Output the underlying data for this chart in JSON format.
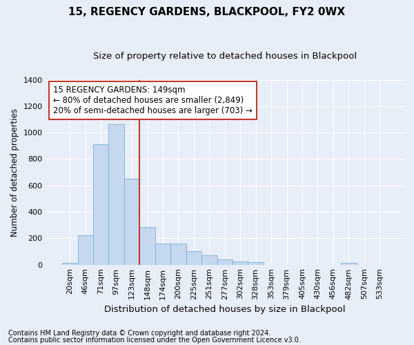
{
  "title": "15, REGENCY GARDENS, BLACKPOOL, FY2 0WX",
  "subtitle": "Size of property relative to detached houses in Blackpool",
  "xlabel": "Distribution of detached houses by size in Blackpool",
  "ylabel": "Number of detached properties",
  "categories": [
    "20sqm",
    "46sqm",
    "71sqm",
    "97sqm",
    "123sqm",
    "148sqm",
    "174sqm",
    "200sqm",
    "225sqm",
    "251sqm",
    "277sqm",
    "302sqm",
    "328sqm",
    "353sqm",
    "379sqm",
    "405sqm",
    "430sqm",
    "456sqm",
    "482sqm",
    "507sqm",
    "533sqm"
  ],
  "values": [
    15,
    225,
    910,
    1065,
    650,
    285,
    160,
    160,
    105,
    70,
    40,
    25,
    20,
    0,
    0,
    0,
    0,
    0,
    15,
    0,
    0
  ],
  "bar_color": "#c5d8f0",
  "bar_edge_color": "#7aafd4",
  "vline_color": "#c0392b",
  "annotation_text": "15 REGENCY GARDENS: 149sqm\n← 80% of detached houses are smaller (2,849)\n20% of semi-detached houses are larger (703) →",
  "annotation_box_color": "#ffffff",
  "annotation_box_edge_color": "#c0392b",
  "background_color": "#e8eef8",
  "plot_bg_color": "#e8eef8",
  "footer1": "Contains HM Land Registry data © Crown copyright and database right 2024.",
  "footer2": "Contains public sector information licensed under the Open Government Licence v3.0.",
  "ylim": [
    0,
    1400
  ],
  "yticks": [
    0,
    200,
    400,
    600,
    800,
    1000,
    1200,
    1400
  ],
  "vline_pos": 4.5,
  "title_fontsize": 11,
  "subtitle_fontsize": 9.5,
  "ylabel_fontsize": 8.5,
  "xlabel_fontsize": 9.5,
  "tick_fontsize": 8,
  "footer_fontsize": 7,
  "annot_fontsize": 8.5
}
